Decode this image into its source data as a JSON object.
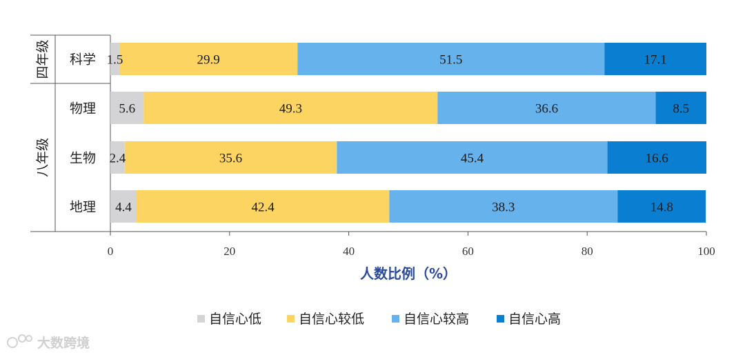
{
  "chart_data": {
    "type": "bar",
    "orientation": "horizontal",
    "stacked": true,
    "xlabel": "人数比例（%）",
    "xlim": [
      0,
      100
    ],
    "xticks": [
      0,
      20,
      40,
      60,
      80,
      100
    ],
    "groups": [
      {
        "label": "四年级",
        "categories": [
          "科学"
        ]
      },
      {
        "label": "八年级",
        "categories": [
          "物理",
          "生物",
          "地理"
        ]
      }
    ],
    "categories": [
      "科学",
      "物理",
      "生物",
      "地理"
    ],
    "series": [
      {
        "name": "自信心低",
        "color": "#d4d4d6",
        "values": [
          1.5,
          5.6,
          2.4,
          4.4
        ]
      },
      {
        "name": "自信心较低",
        "color": "#fcd462",
        "values": [
          29.9,
          49.3,
          35.6,
          42.4
        ]
      },
      {
        "name": "自信心较高",
        "color": "#66b2ed",
        "values": [
          51.5,
          36.6,
          45.4,
          38.3
        ]
      },
      {
        "name": "自信心高",
        "color": "#0a7ed1",
        "values": [
          17.1,
          8.5,
          16.6,
          14.8
        ]
      }
    ],
    "legend_position": "bottom",
    "grid": false
  },
  "watermark": "大数跨境"
}
